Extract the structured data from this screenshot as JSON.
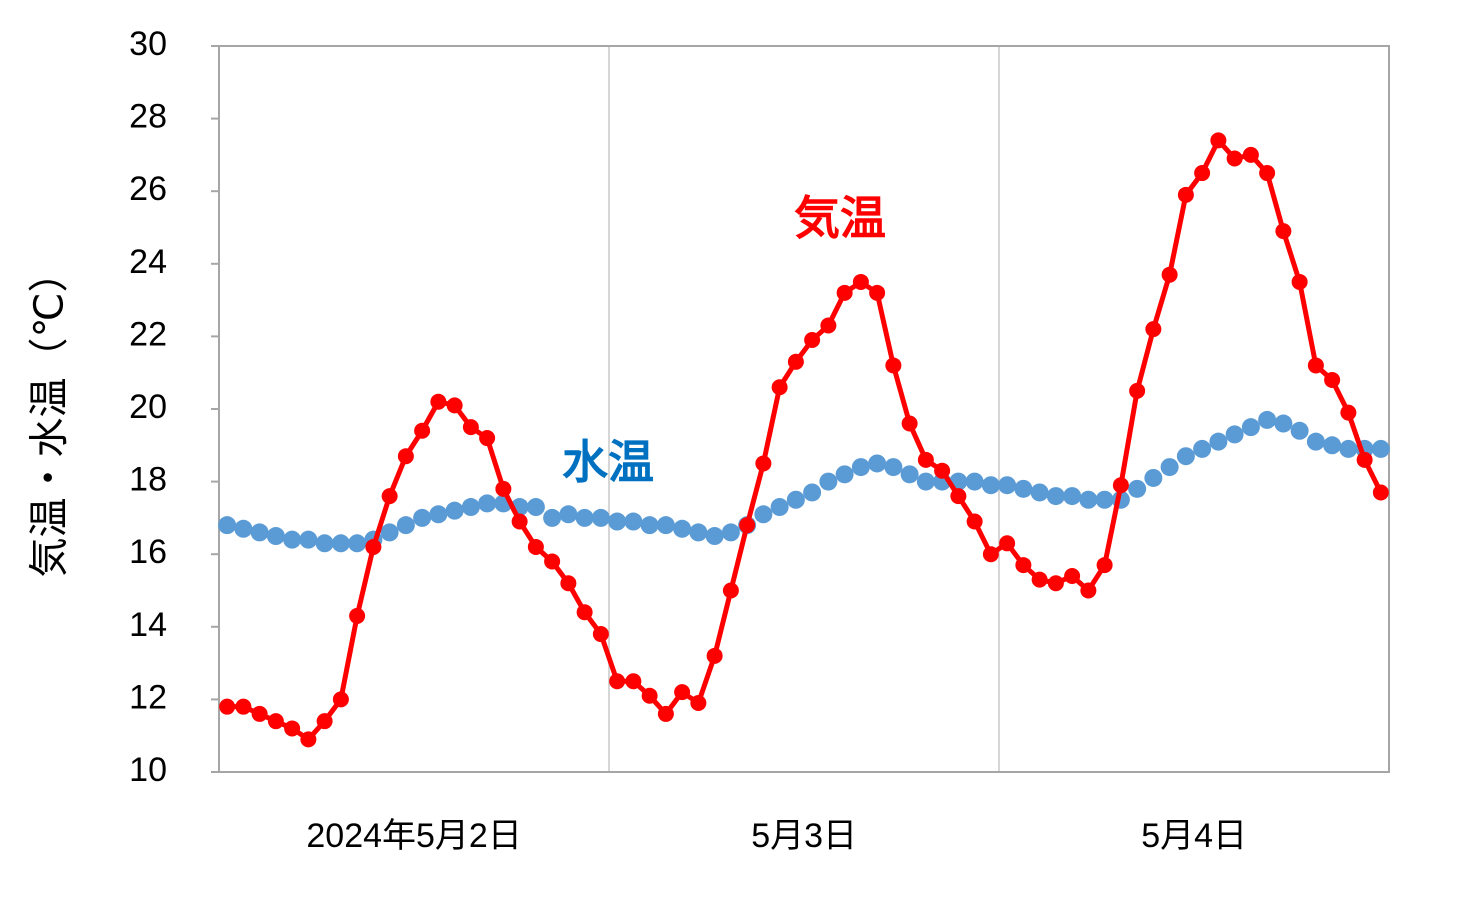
{
  "chart_data": {
    "type": "line",
    "y_label": "気温・水温（℃）",
    "categories": [
      null,
      null,
      null,
      null,
      null,
      null,
      null,
      null,
      null,
      null,
      null,
      null,
      "2024年5月2日",
      null,
      null,
      null,
      null,
      null,
      null,
      null,
      null,
      null,
      null,
      null,
      null,
      null,
      null,
      null,
      null,
      null,
      null,
      null,
      null,
      null,
      null,
      null,
      "5月3日",
      null,
      null,
      null,
      null,
      null,
      null,
      null,
      null,
      null,
      null,
      null,
      null,
      null,
      null,
      null,
      null,
      null,
      null,
      null,
      null,
      null,
      null,
      null,
      "5月4日",
      null,
      null,
      null,
      null,
      null,
      null,
      null,
      null,
      null,
      null,
      null
    ],
    "series": [
      {
        "name": "水温",
        "color": "#5b9bd5",
        "values": [
          16.8,
          16.7,
          16.6,
          16.5,
          16.4,
          16.4,
          16.3,
          16.3,
          16.3,
          16.4,
          16.6,
          16.8,
          17.0,
          17.1,
          17.2,
          17.3,
          17.4,
          17.4,
          17.3,
          17.3,
          17.0,
          17.1,
          17.0,
          17.0,
          16.9,
          16.9,
          16.8,
          16.8,
          16.7,
          16.6,
          16.5,
          16.6,
          16.8,
          17.1,
          17.3,
          17.5,
          17.7,
          18.0,
          18.2,
          18.4,
          18.5,
          18.4,
          18.2,
          18.0,
          18.0,
          18.0,
          18.0,
          17.9,
          17.9,
          17.8,
          17.7,
          17.6,
          17.6,
          17.5,
          17.5,
          17.5,
          17.8,
          18.1,
          18.4,
          18.7,
          18.9,
          19.1,
          19.3,
          19.5,
          19.7,
          19.6,
          19.4,
          19.1,
          19.0,
          18.9,
          18.9,
          18.9
        ]
      },
      {
        "name": "気温",
        "color": "#ff0000",
        "values": [
          11.8,
          11.8,
          11.6,
          11.4,
          11.2,
          10.9,
          11.4,
          12.0,
          14.3,
          16.2,
          17.6,
          18.7,
          19.4,
          20.2,
          20.1,
          19.5,
          19.2,
          17.8,
          16.9,
          16.2,
          15.8,
          15.2,
          14.4,
          13.8,
          12.5,
          12.5,
          12.1,
          11.6,
          12.2,
          11.9,
          13.2,
          15.0,
          16.8,
          18.5,
          20.6,
          21.3,
          21.9,
          22.3,
          23.2,
          23.5,
          23.2,
          21.2,
          19.6,
          18.6,
          18.3,
          17.6,
          16.9,
          16.0,
          16.3,
          15.7,
          15.3,
          15.2,
          15.4,
          15.0,
          15.7,
          17.9,
          20.5,
          22.2,
          23.7,
          25.9,
          26.5,
          27.4,
          26.9,
          27.0,
          26.5,
          24.9,
          23.5,
          21.2,
          20.8,
          19.9,
          18.6,
          17.7
        ]
      }
    ],
    "ylim": [
      10,
      30
    ],
    "yticks": [
      10,
      12,
      14,
      16,
      18,
      20,
      22,
      24,
      26,
      28,
      30
    ]
  }
}
